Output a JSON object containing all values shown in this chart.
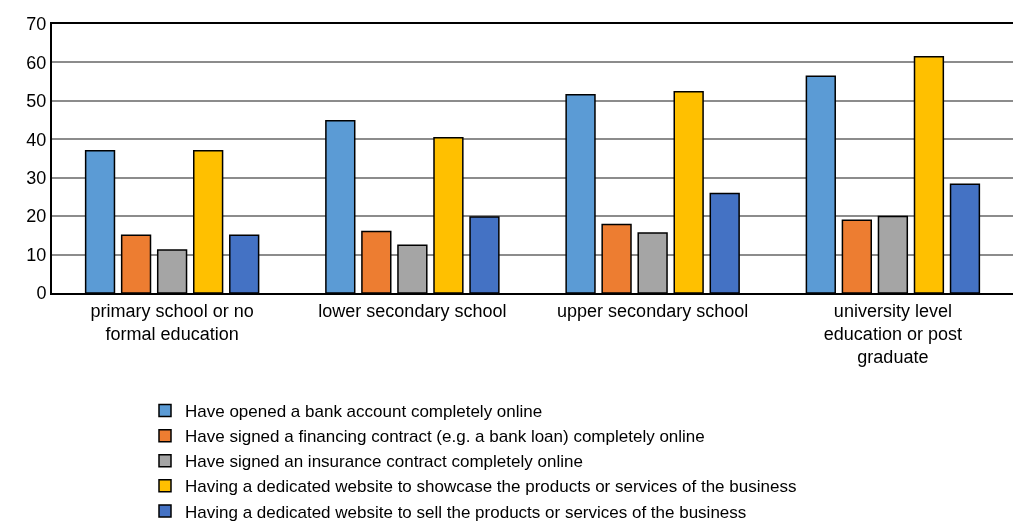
{
  "chart_data": {
    "type": "bar",
    "categories": [
      "primary school or no formal education",
      "lower secondary school",
      "upper secondary school",
      "university level education or post graduate"
    ],
    "series": [
      {
        "name": "Have opened a bank account completely online",
        "color": "#5b9bd5",
        "values": [
          37.0,
          44.8,
          51.6,
          56.4
        ]
      },
      {
        "name": "Have signed a financing contract (e.g. a bank loan) completely online",
        "color": "#ed7d31",
        "values": [
          15.0,
          16.0,
          17.8,
          18.9
        ]
      },
      {
        "name": "Have signed an insurance contract completely online",
        "color": "#a5a5a5",
        "values": [
          11.2,
          12.4,
          15.6,
          19.9
        ]
      },
      {
        "name": "Having a dedicated website to showcase the products or services of the business",
        "color": "#ffc000",
        "values": [
          37.0,
          40.4,
          52.4,
          61.5
        ]
      },
      {
        "name": "Having a dedicated website to sell the products or services of the business",
        "color": "#4472c4",
        "values": [
          15.0,
          19.8,
          25.9,
          28.3
        ]
      }
    ],
    "ylim": [
      0,
      70
    ],
    "yticks": [
      0,
      10,
      20,
      30,
      40,
      50,
      60,
      70
    ],
    "grid": "y",
    "legend": "bottom"
  }
}
